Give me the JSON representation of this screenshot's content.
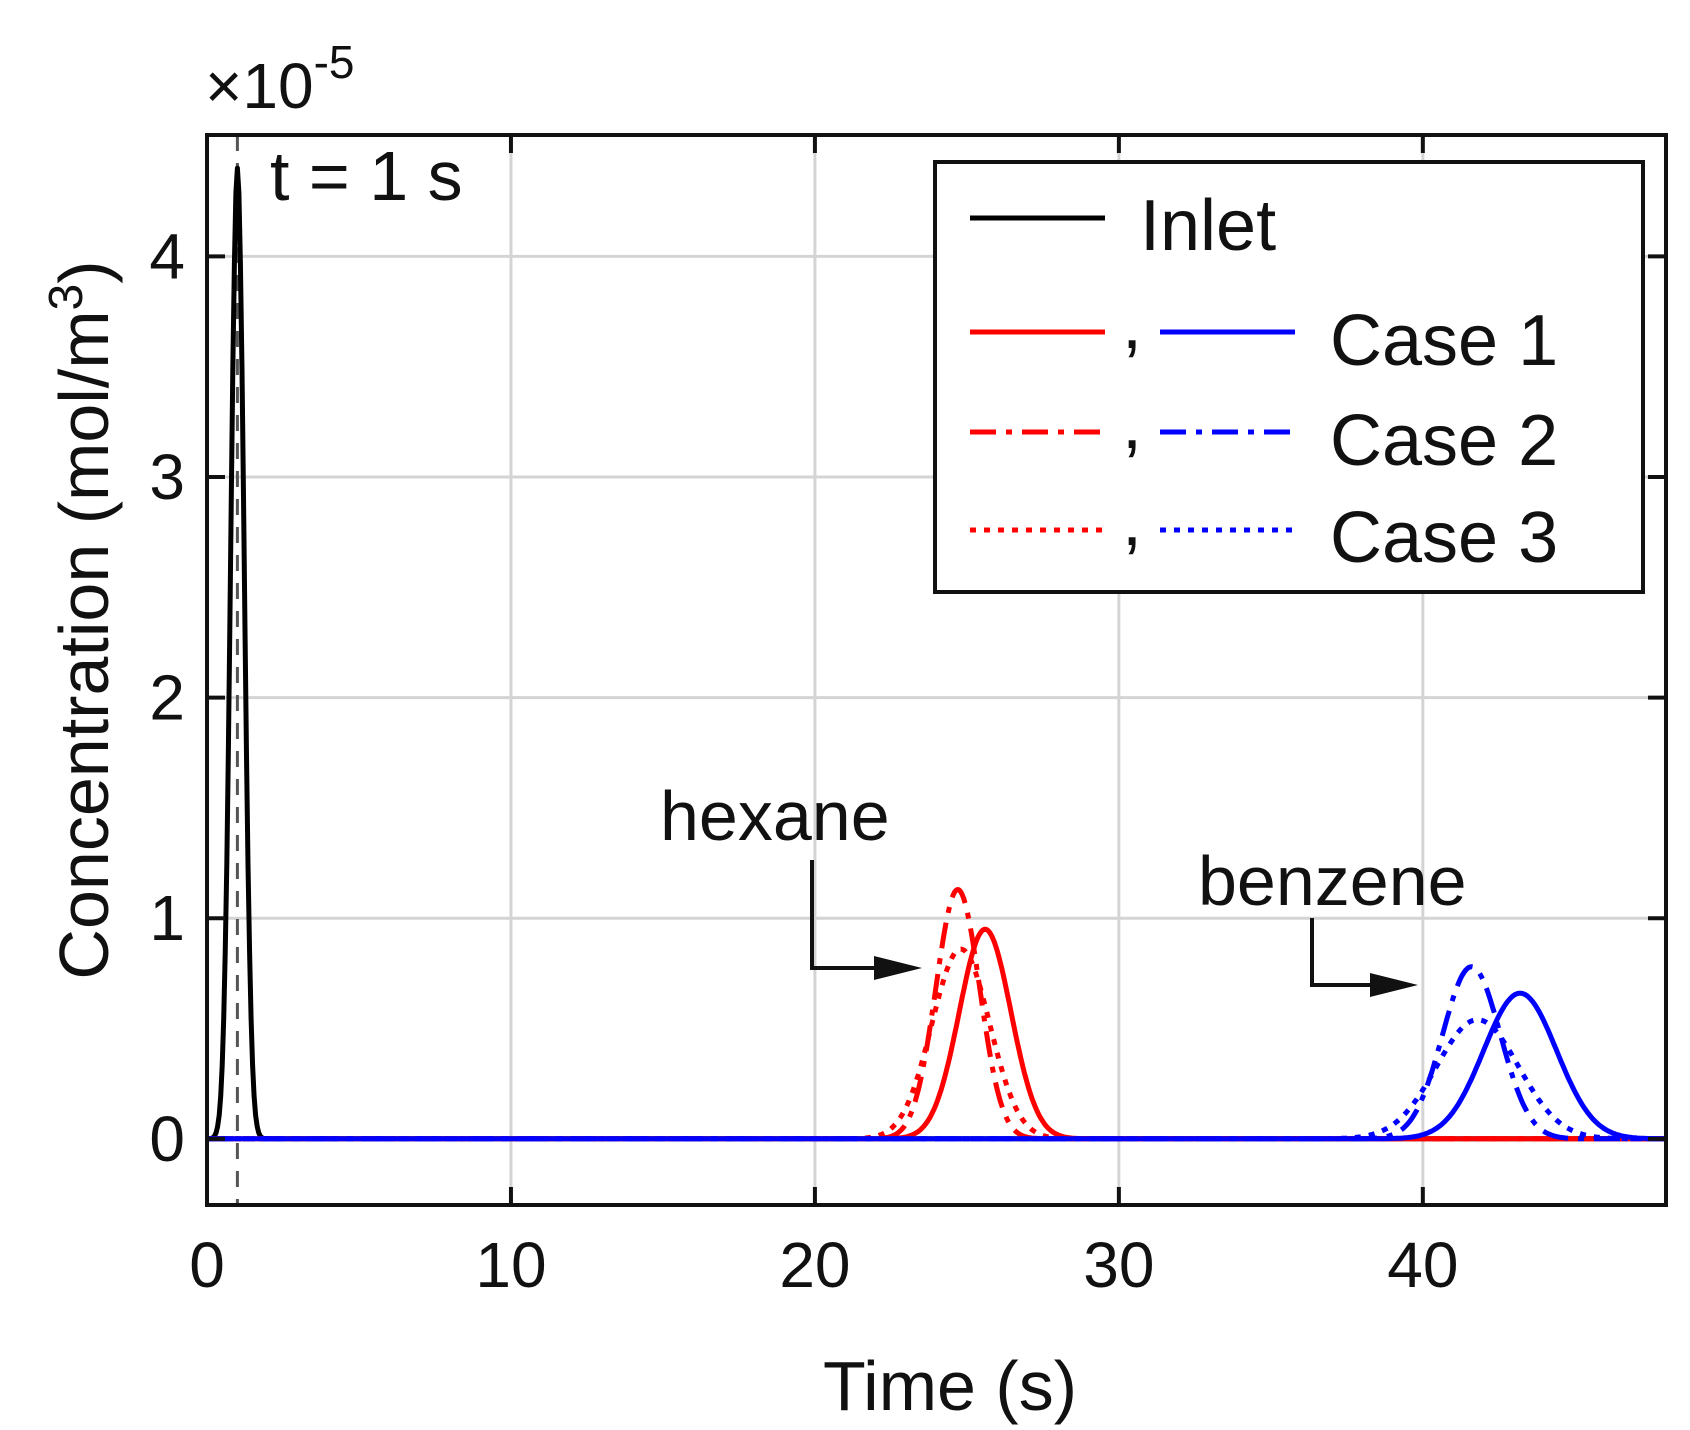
{
  "chart_data": {
    "type": "line",
    "xlabel": "Time (s)",
    "ylabel": "Concentration (mol/m³)",
    "ylabel_main": "Concentration (mol/m",
    "ylabel_sup": "3",
    "ylabel_close": ")",
    "y_scale_prefix": "×10",
    "y_scale_exponent": "-5",
    "xlim": [
      0,
      48
    ],
    "ylim": [
      -0.3,
      4.55
    ],
    "xticks": [
      0,
      10,
      20,
      30,
      40
    ],
    "xtick_labels": [
      "0",
      "10",
      "20",
      "30",
      "40"
    ],
    "yticks": [
      0,
      1,
      2,
      3,
      4
    ],
    "ytick_labels": [
      "0",
      "1",
      "2",
      "3",
      "4"
    ],
    "grid": true,
    "legend_position": "top-right",
    "legend": [
      {
        "label": "Inlet",
        "colors": [
          "#000000"
        ],
        "style": "solid"
      },
      {
        "label": "Case 1",
        "colors": [
          "#ff0000",
          "#0000ff"
        ],
        "style": "solid"
      },
      {
        "label": "Case 2",
        "colors": [
          "#ff0000",
          "#0000ff"
        ],
        "style": "dashdot"
      },
      {
        "label": "Case 3",
        "colors": [
          "#ff0000",
          "#0000ff"
        ],
        "style": "dotted"
      }
    ],
    "legend_separator": ",",
    "annotations": {
      "inject_time": "t = 1 s",
      "inject_time_value": 1,
      "hexane": "hexane",
      "benzene": "benzene"
    },
    "series": [
      {
        "name": "Inlet",
        "compound": "inlet",
        "color": "#000000",
        "style": "solid",
        "peak_time": 1.0,
        "peak_value": 4.4,
        "sigma": 0.22
      },
      {
        "name": "Case 1",
        "compound": "hexane",
        "color": "#ff0000",
        "style": "solid",
        "peak_time": 25.6,
        "peak_value": 0.95,
        "sigma": 0.85
      },
      {
        "name": "Case 2",
        "compound": "hexane",
        "color": "#ff0000",
        "style": "dashdot",
        "peak_time": 24.7,
        "peak_value": 1.13,
        "sigma": 0.72
      },
      {
        "name": "Case 3",
        "compound": "hexane",
        "color": "#ff0000",
        "style": "dotted",
        "peak_time": 24.8,
        "peak_value": 0.86,
        "sigma": 0.95
      },
      {
        "name": "Case 1",
        "compound": "benzene",
        "color": "#0000ff",
        "style": "solid",
        "peak_time": 43.2,
        "peak_value": 0.66,
        "sigma": 1.2
      },
      {
        "name": "Case 2",
        "compound": "benzene",
        "color": "#0000ff",
        "style": "dashdot",
        "peak_time": 41.6,
        "peak_value": 0.78,
        "sigma": 0.95
      },
      {
        "name": "Case 3",
        "compound": "benzene",
        "color": "#0000ff",
        "style": "dotted",
        "peak_time": 41.8,
        "peak_value": 0.54,
        "sigma": 1.35
      }
    ]
  }
}
